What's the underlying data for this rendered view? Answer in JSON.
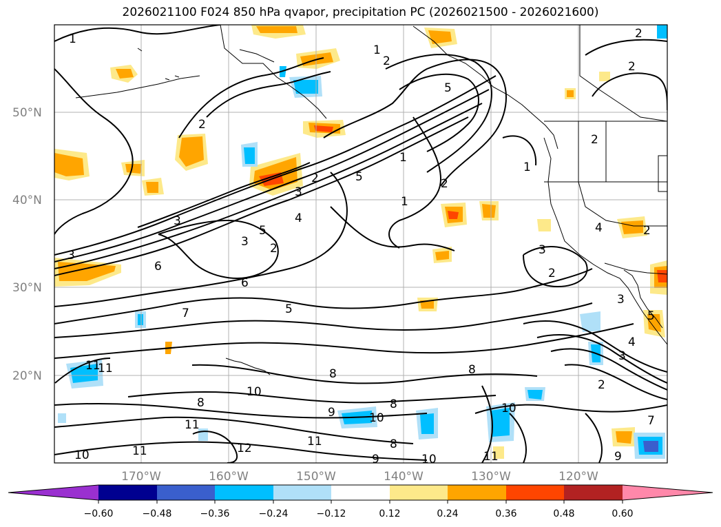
{
  "title": "2026021100 F024 850 hPa qvapor, precipitation PC (2026021500 - 2026021600)",
  "lat_labels": [
    "50°N",
    "40°N",
    "30°N",
    "20°N"
  ],
  "lon_labels": [
    "170°W",
    "160°W",
    "150°W",
    "140°W",
    "130°W",
    "120°W"
  ],
  "colorbar": {
    "ticks": [
      "−0.60",
      "−0.48",
      "−0.36",
      "−0.24",
      "−0.12",
      "0.12",
      "0.24",
      "0.36",
      "0.48",
      "0.60"
    ],
    "colors": [
      "#9a30d0",
      "#000090",
      "#3a5fcd",
      "#00bfff",
      "#b0e0f8",
      "#ffffff",
      "#fde98a",
      "#ffa500",
      "#ff4500",
      "#b22222",
      "#ff88aa"
    ]
  },
  "contour_labels": [
    "1",
    "2",
    "1",
    "2",
    "5",
    "2",
    "2",
    "2",
    "3",
    "2",
    "5",
    "1",
    "1",
    "1",
    "2",
    "3",
    "4",
    "3",
    "2",
    "3",
    "6",
    "5",
    "2",
    "6",
    "3",
    "3",
    "4",
    "2",
    "4",
    "3",
    "2",
    "7",
    "5",
    "11",
    "11",
    "8",
    "8",
    "10",
    "8",
    "9",
    "10",
    "8",
    "11",
    "11",
    "12",
    "9",
    "10",
    "8",
    "10",
    "10",
    "11",
    "11",
    "9",
    "5",
    "7"
  ]
}
